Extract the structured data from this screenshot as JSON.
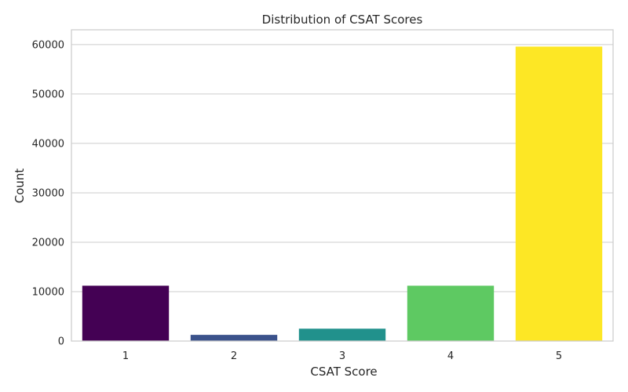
{
  "chart_data": {
    "type": "bar",
    "title": "Distribution of CSAT Scores",
    "xlabel": "CSAT Score",
    "ylabel": "Count",
    "categories": [
      "1",
      "2",
      "3",
      "4",
      "5"
    ],
    "values": [
      11200,
      1250,
      2500,
      11200,
      59600
    ],
    "colors": [
      "#440154",
      "#3b528b",
      "#21918c",
      "#5ec962",
      "#fde725"
    ],
    "ylim": [
      0,
      63000
    ],
    "yticks": [
      0,
      10000,
      20000,
      30000,
      40000,
      50000,
      60000
    ],
    "ytick_labels": [
      "0",
      "10000",
      "20000",
      "30000",
      "40000",
      "50000",
      "60000"
    ],
    "grid": true,
    "legend": "none"
  }
}
